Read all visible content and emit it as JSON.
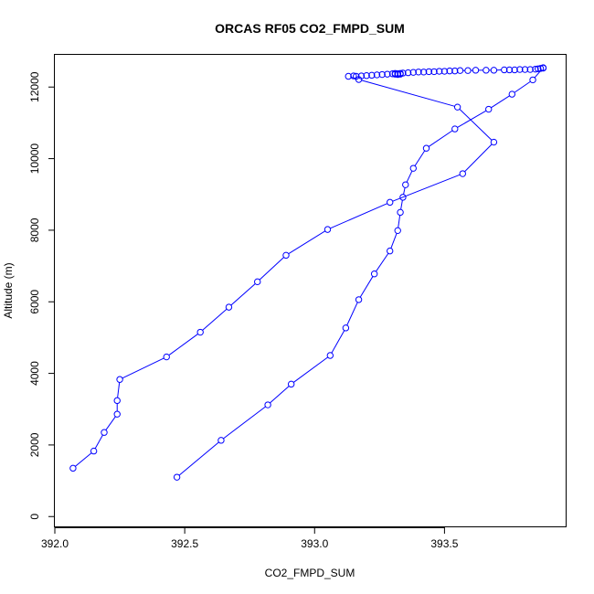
{
  "chart_data": {
    "type": "line",
    "title": "ORCAS RF05 CO2_FMPD_SUM",
    "xlabel": "CO2_FMPD_SUM",
    "ylabel": "Altitude (m)",
    "xlim": [
      392.0,
      393.97
    ],
    "ylim": [
      -300,
      12900
    ],
    "x_ticks": [
      392.0,
      392.5,
      393.0,
      393.5
    ],
    "x_tick_labels": [
      "392.0",
      "392.5",
      "393.0",
      "393.5"
    ],
    "y_ticks": [
      0,
      2000,
      4000,
      6000,
      8000,
      10000,
      12000
    ],
    "y_tick_labels": [
      "0",
      "2000",
      "4000",
      "6000",
      "8000",
      "10000",
      "12000"
    ],
    "grid": false,
    "legend": "none",
    "series": [
      {
        "color": "#0000ff",
        "marker": "open-circle",
        "points": [
          [
            392.07,
            1350
          ],
          [
            392.15,
            1830
          ],
          [
            392.19,
            2350
          ],
          [
            392.24,
            2860
          ],
          [
            392.24,
            3240
          ],
          [
            392.25,
            3830
          ],
          [
            392.43,
            4460
          ],
          [
            392.56,
            5150
          ],
          [
            392.67,
            5850
          ],
          [
            392.78,
            6560
          ],
          [
            392.89,
            7300
          ],
          [
            393.05,
            8020
          ],
          [
            393.29,
            8780
          ],
          [
            393.57,
            9580
          ],
          [
            393.69,
            10460
          ],
          [
            393.55,
            11440
          ],
          [
            393.17,
            12210
          ],
          [
            393.13,
            12300
          ],
          [
            393.15,
            12310
          ],
          [
            393.16,
            12300
          ],
          [
            393.18,
            12310
          ],
          [
            393.2,
            12320
          ],
          [
            393.22,
            12330
          ],
          [
            393.24,
            12340
          ],
          [
            393.26,
            12350
          ],
          [
            393.28,
            12360
          ],
          [
            393.3,
            12370
          ],
          [
            393.31,
            12380
          ],
          [
            393.32,
            12370
          ],
          [
            393.31,
            12360
          ],
          [
            393.32,
            12350
          ],
          [
            393.33,
            12360
          ],
          [
            393.32,
            12370
          ],
          [
            393.33,
            12380
          ],
          [
            393.34,
            12390
          ],
          [
            393.36,
            12400
          ],
          [
            393.38,
            12410
          ],
          [
            393.4,
            12420
          ],
          [
            393.42,
            12420
          ],
          [
            393.44,
            12430
          ],
          [
            393.46,
            12430
          ],
          [
            393.48,
            12440
          ],
          [
            393.5,
            12440
          ],
          [
            393.52,
            12450
          ],
          [
            393.54,
            12450
          ],
          [
            393.56,
            12460
          ],
          [
            393.59,
            12460
          ],
          [
            393.62,
            12470
          ],
          [
            393.66,
            12470
          ],
          [
            393.69,
            12470
          ],
          [
            393.73,
            12480
          ],
          [
            393.75,
            12480
          ],
          [
            393.77,
            12480
          ],
          [
            393.79,
            12490
          ],
          [
            393.81,
            12490
          ],
          [
            393.83,
            12490
          ],
          [
            393.85,
            12500
          ],
          [
            393.86,
            12510
          ],
          [
            393.87,
            12520
          ],
          [
            393.88,
            12530
          ],
          [
            393.88,
            12540
          ],
          [
            393.84,
            12200
          ],
          [
            393.76,
            11800
          ],
          [
            393.67,
            11380
          ],
          [
            393.54,
            10830
          ],
          [
            393.43,
            10290
          ],
          [
            393.38,
            9730
          ],
          [
            393.35,
            9270
          ],
          [
            393.34,
            8920
          ],
          [
            393.33,
            8500
          ],
          [
            393.32,
            7990
          ],
          [
            393.29,
            7420
          ],
          [
            393.23,
            6780
          ],
          [
            393.17,
            6060
          ],
          [
            393.12,
            5270
          ],
          [
            393.06,
            4500
          ],
          [
            392.91,
            3700
          ],
          [
            392.82,
            3120
          ],
          [
            392.64,
            2130
          ],
          [
            392.47,
            1100
          ]
        ]
      }
    ]
  }
}
